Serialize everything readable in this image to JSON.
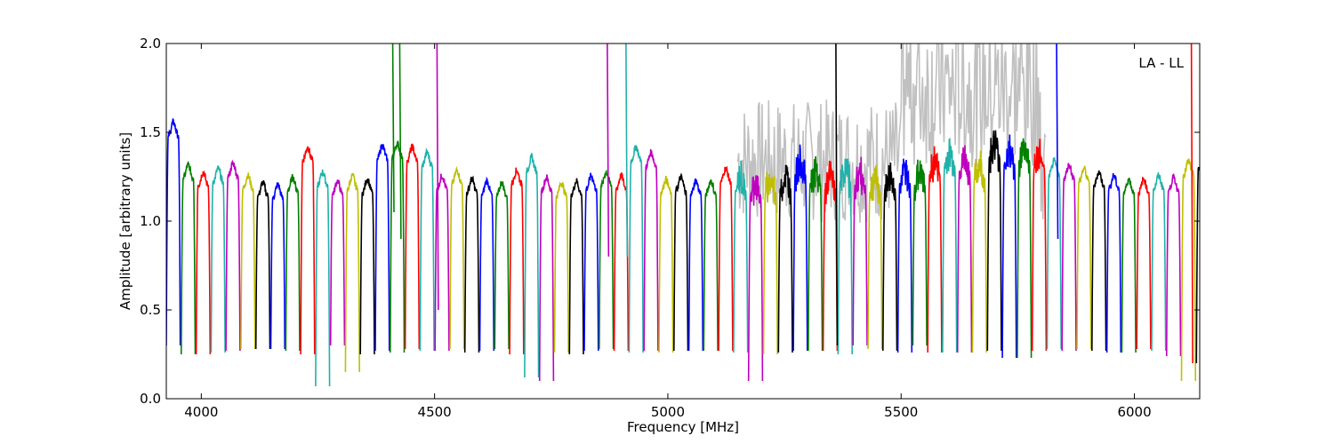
{
  "chart_data": {
    "type": "line",
    "title": "",
    "xlabel": "Frequency [MHz]",
    "ylabel": "Amplitude [arbitrary units]",
    "xlim": [
      3925,
      6140
    ],
    "ylim": [
      0.0,
      2.0
    ],
    "xticks": [
      4000,
      4500,
      5000,
      5500,
      6000
    ],
    "yticks": [
      0.0,
      0.5,
      1.0,
      1.5,
      2.0
    ],
    "xtick_labels": [
      "4000",
      "4500",
      "5000",
      "5500",
      "6000"
    ],
    "ytick_labels": [
      "0.0",
      "0.5",
      "1.0",
      "1.5",
      "2.0"
    ],
    "grid": false,
    "annotation": "LA - LL",
    "channel_width_mhz": 32,
    "channel_colors": [
      "#0000ff",
      "#008000",
      "#ff0000",
      "#20b2aa",
      "#bf00bf",
      "#bfbf00",
      "#000000"
    ],
    "background_trace_color": "#c0c0c0",
    "channel_peaks": [
      1.52,
      1.28,
      1.24,
      1.26,
      1.29,
      1.22,
      1.18,
      1.17,
      1.21,
      1.38,
      1.24,
      1.19,
      1.22,
      1.2,
      1.39,
      1.4,
      1.38,
      1.35,
      1.22,
      1.25,
      1.2,
      1.19,
      1.18,
      1.25,
      1.32,
      1.21,
      1.18,
      1.19,
      1.22,
      1.24,
      1.22,
      1.38,
      1.35,
      1.2,
      1.21,
      1.19,
      1.19,
      1.26,
      1.21,
      1.18,
      1.2,
      1.22,
      1.3,
      1.25,
      1.22,
      1.26,
      1.24,
      1.2,
      1.22,
      1.25,
      1.24,
      1.3,
      1.35,
      1.32,
      1.28,
      1.4,
      1.36,
      1.38,
      1.34,
      1.3,
      1.28,
      1.26,
      1.24,
      1.22,
      1.2,
      1.2,
      1.22,
      1.21,
      1.3,
      1.34
    ],
    "channel_minima": [
      0.3,
      0.25,
      0.25,
      0.26,
      0.27,
      0.28,
      0.28,
      0.28,
      0.27,
      0.25,
      0.07,
      0.3,
      0.15,
      0.25,
      0.27,
      0.26,
      0.28,
      0.27,
      0.27,
      0.28,
      0.26,
      0.27,
      0.28,
      0.25,
      0.12,
      0.1,
      0.26,
      0.25,
      0.27,
      0.28,
      0.27,
      0.26,
      0.27,
      0.26,
      0.27,
      0.27,
      0.27,
      0.27,
      0.26,
      0.1,
      0.25,
      0.26,
      0.27,
      0.27,
      0.27,
      0.25,
      0.3,
      0.28,
      0.27,
      0.26,
      0.3,
      0.26,
      0.26,
      0.26,
      0.26,
      0.27,
      0.23,
      0.23,
      0.27,
      0.28,
      0.27,
      0.28,
      0.27,
      0.26,
      0.26,
      0.28,
      0.27,
      0.24,
      0.1,
      0.2
    ]
  }
}
